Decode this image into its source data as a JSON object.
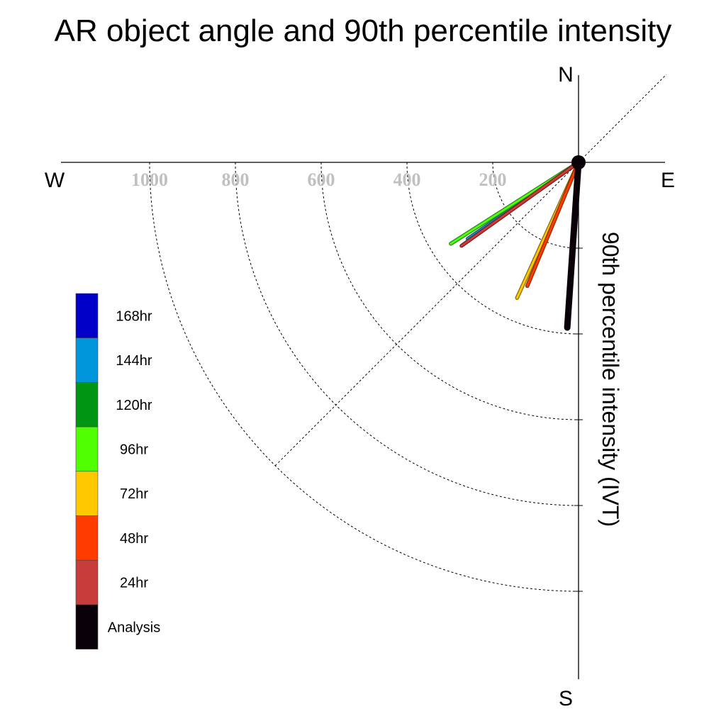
{
  "chart_data": {
    "type": "polar-vector",
    "title": "AR object angle and 90th percentile intensity",
    "ylabel": "90th percentile intensity (IVT)",
    "compass": {
      "north": "N",
      "south": "S",
      "east": "E",
      "west": "W"
    },
    "r_ticks": [
      200,
      400,
      600,
      800,
      1000
    ],
    "r_tick_labels": [
      "200",
      "400",
      "600",
      "800",
      "1000"
    ],
    "r_range": [
      0,
      1000
    ],
    "angle_reference_lines_deg": [
      45
    ],
    "grid": true,
    "legend_position": "left",
    "legend": [
      {
        "label": "168hr",
        "color": "#0000c8"
      },
      {
        "label": "144hr",
        "color": "#0096dc"
      },
      {
        "label": "120hr",
        "color": "#009614"
      },
      {
        "label": "96hr",
        "color": "#50ff00"
      },
      {
        "label": "72hr",
        "color": "#ffc800"
      },
      {
        "label": "48hr",
        "color": "#ff3c00"
      },
      {
        "label": "24hr",
        "color": "#c83c3c"
      },
      {
        "label": "Analysis",
        "color": "#0a0008"
      }
    ],
    "series": [
      {
        "name": "144hr",
        "angle_deg": 235.4,
        "intensity": 314,
        "color": "#0096dc",
        "outline": "#2a5a6a"
      },
      {
        "name": "96hr",
        "angle_deg": 237.5,
        "intensity": 353,
        "color": "#50ff00",
        "outline": "#2a8a1a"
      },
      {
        "name": "24hr",
        "angle_deg": 234.5,
        "intensity": 335,
        "color": "#c83c3c",
        "outline": "#7a1a1a"
      },
      {
        "name": "72hr",
        "angle_deg": 204.4,
        "intensity": 347,
        "color": "#ffc800",
        "outline": "#8a6a00"
      },
      {
        "name": "48hr",
        "angle_deg": 202.5,
        "intensity": 312,
        "color": "#ff3c00",
        "outline": "#8a2a00"
      },
      {
        "name": "Analysis",
        "angle_deg": 183.9,
        "intensity": 386,
        "color": "#0a0008",
        "outline": "#0a0008"
      }
    ]
  }
}
